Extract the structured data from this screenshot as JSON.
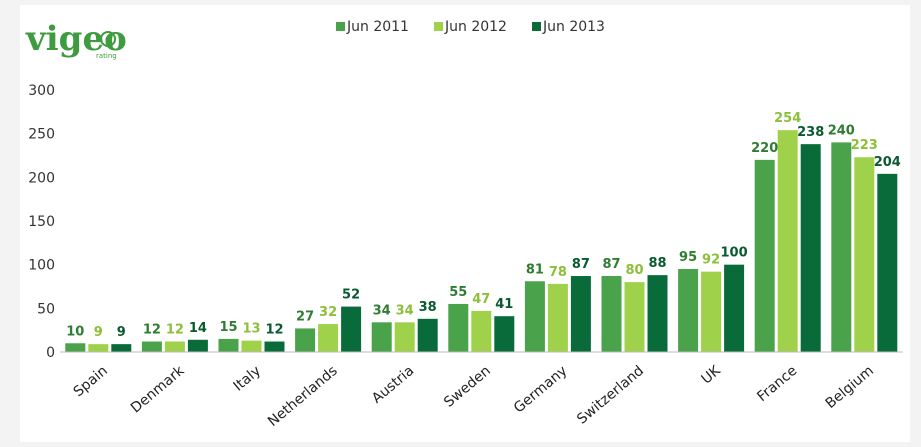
{
  "logo": {
    "text": "vigeo",
    "subtext": "rating"
  },
  "chart_data": {
    "type": "bar",
    "categories": [
      "Spain",
      "Denmark",
      "Italy",
      "Netherlands",
      "Austria",
      "Sweden",
      "Germany",
      "Switzerland",
      "UK",
      "France",
      "Belgium"
    ],
    "series": [
      {
        "name": "Jun 2011",
        "color": "#4aa24a",
        "label_color": "#2f7d32",
        "values": [
          10,
          12,
          15,
          27,
          34,
          55,
          81,
          87,
          95,
          220,
          240
        ]
      },
      {
        "name": "Jun 2012",
        "color": "#9fd14a",
        "label_color": "#8cbf3a",
        "values": [
          9,
          12,
          13,
          32,
          34,
          47,
          78,
          80,
          92,
          254,
          223
        ]
      },
      {
        "name": "Jun 2013",
        "color": "#0a6b3a",
        "label_color": "#0a5a30",
        "values": [
          9,
          14,
          12,
          52,
          38,
          41,
          87,
          88,
          100,
          238,
          204
        ]
      }
    ],
    "yticks": [
      0,
      50,
      100,
      150,
      200,
      250,
      300
    ],
    "ylim": [
      0,
      300
    ],
    "legend_position": "top-center",
    "grid": false,
    "title": "",
    "xlabel": "",
    "ylabel": ""
  }
}
